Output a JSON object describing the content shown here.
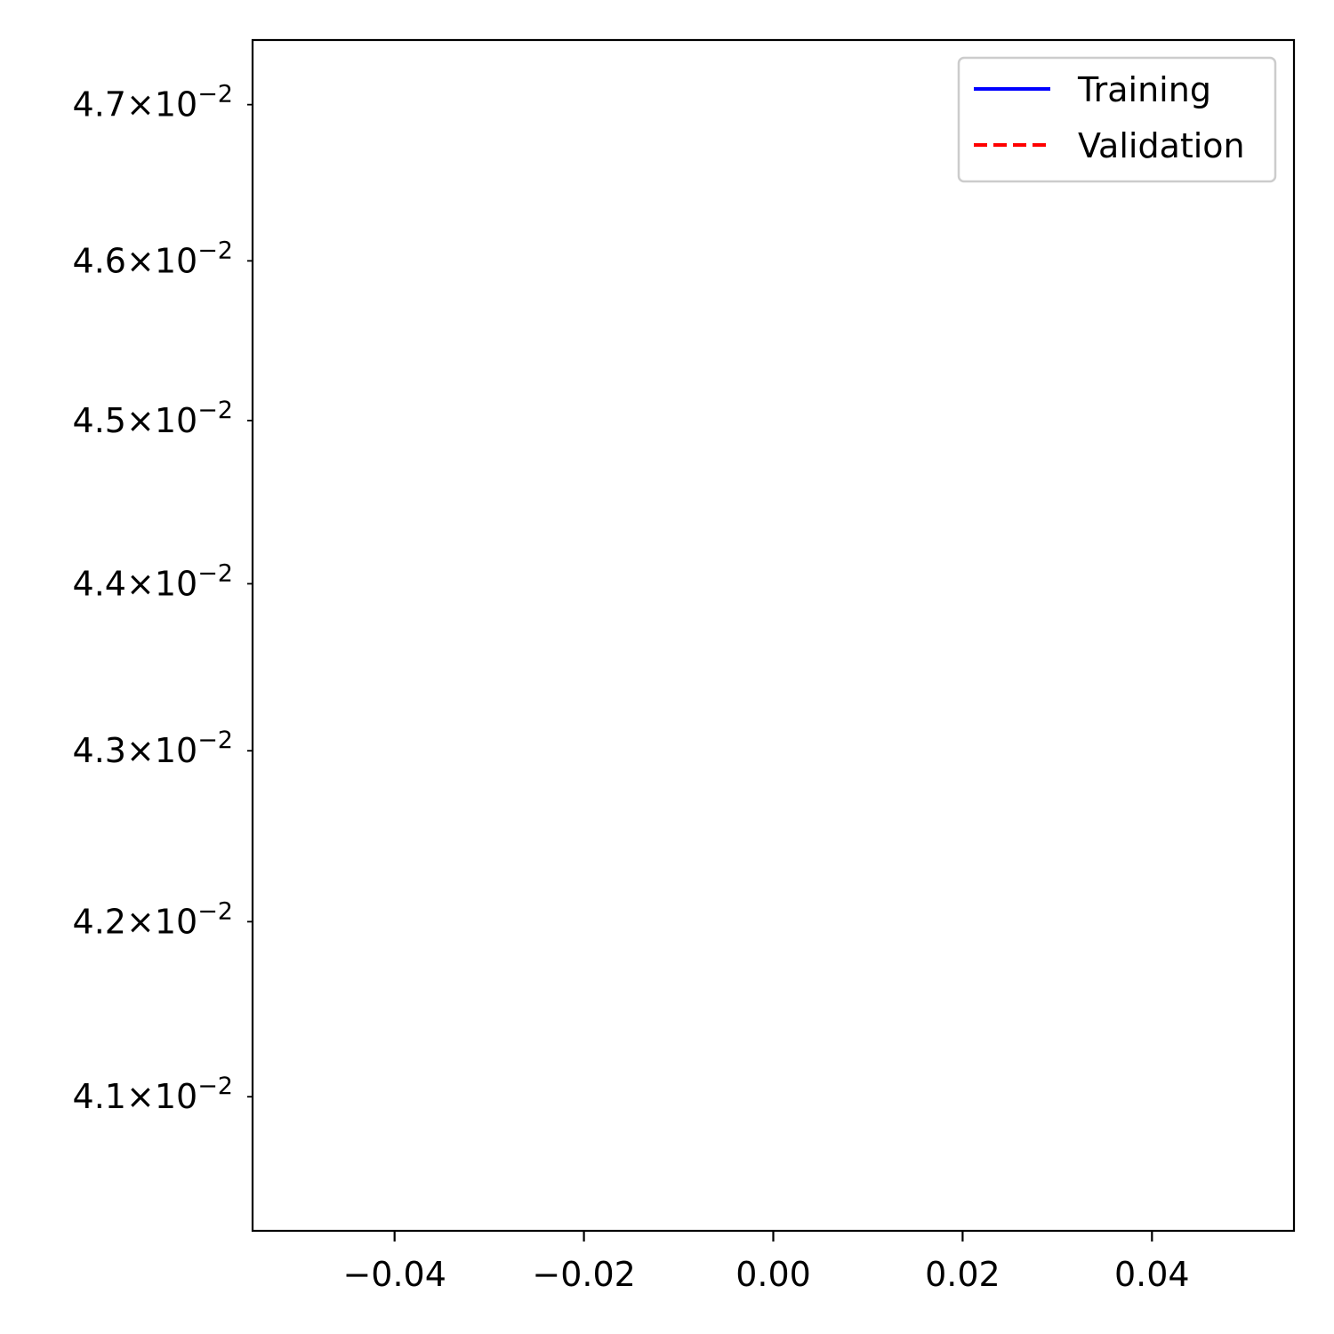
{
  "chart_data": {
    "type": "line",
    "title": "",
    "xlabel": "",
    "ylabel": "",
    "xlim": [
      -0.055,
      0.055
    ],
    "ylim": [
      0.04025,
      0.04742
    ],
    "yscale": "log",
    "grid": false,
    "legend_position": "top-right",
    "x_ticks": [
      -0.04,
      -0.02,
      0.0,
      0.02,
      0.04
    ],
    "x_tick_labels": [
      "−0.04",
      "−0.02",
      "0.00",
      "0.02",
      "0.04"
    ],
    "y_ticks": [
      0.041,
      0.042,
      0.043,
      0.044,
      0.045,
      0.046,
      0.047
    ],
    "y_tick_labels": [
      {
        "mantissa": "4.1",
        "base": "10",
        "exponent": "−2"
      },
      {
        "mantissa": "4.2",
        "base": "10",
        "exponent": "−2"
      },
      {
        "mantissa": "4.3",
        "base": "10",
        "exponent": "−2"
      },
      {
        "mantissa": "4.4",
        "base": "10",
        "exponent": "−2"
      },
      {
        "mantissa": "4.5",
        "base": "10",
        "exponent": "−2"
      },
      {
        "mantissa": "4.6",
        "base": "10",
        "exponent": "−2"
      },
      {
        "mantissa": "4.7",
        "base": "10",
        "exponent": "−2"
      }
    ],
    "times_sign": "×",
    "series": [
      {
        "name": "Training",
        "color": "#0000ff",
        "linestyle": "solid",
        "x": [],
        "y": []
      },
      {
        "name": "Validation",
        "color": "#ff0000",
        "linestyle": "dashed",
        "x": [],
        "y": []
      }
    ]
  }
}
